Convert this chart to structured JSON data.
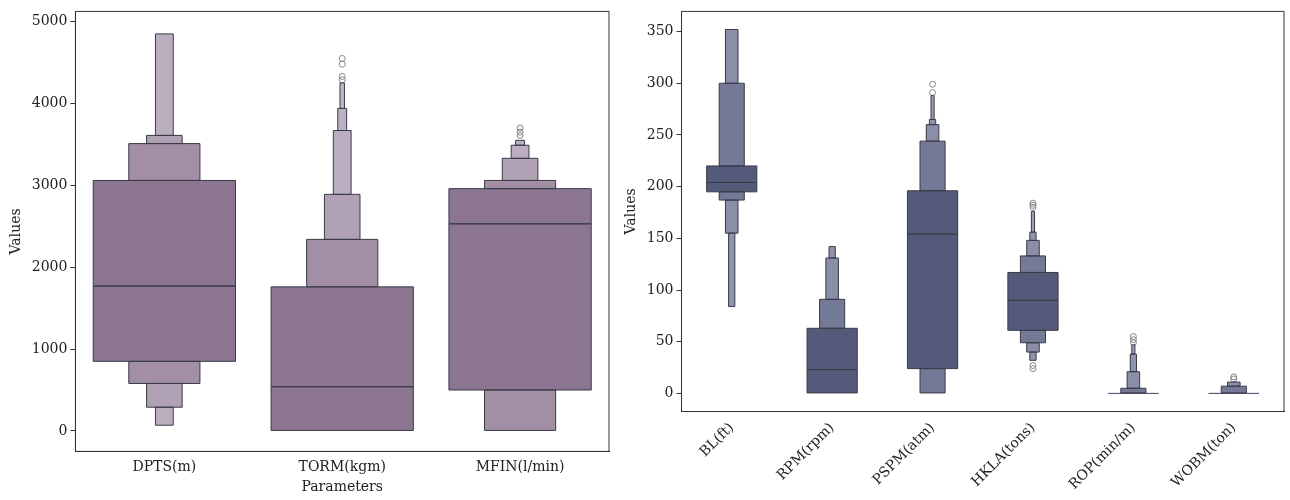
{
  "chart_data": [
    {
      "type": "bar",
      "xlabel": "Parameters",
      "ylabel": "Values",
      "categories": [
        "DPTS(m)",
        "TORM(kgm)",
        "MFIN(l/min)"
      ],
      "ylim": [
        -250,
        5125
      ],
      "yticks": [
        0,
        1000,
        2000,
        3000,
        4000,
        5000
      ],
      "grid": false,
      "legend": false,
      "series": [
        {
          "color": "#8b7590",
          "base": [
            1770,
            540,
            2530
          ],
          "values": [
            1290,
            1220,
            430
          ]
        },
        {
          "color": "#8b7590",
          "base": [
            850,
            0,
            500
          ],
          "values": [
            920,
            540,
            2030
          ]
        },
        {
          "color": "#a28fa5",
          "base": [
            3060,
            1760,
            2960
          ],
          "values": [
            450,
            580,
            100
          ]
        },
        {
          "color": "#a28fa5",
          "base": [
            580,
            null,
            0
          ],
          "values": [
            270,
            null,
            500
          ]
        },
        {
          "color": "#b0a1b4",
          "base": [
            3510,
            2340,
            3060
          ],
          "values": [
            100,
            550,
            270
          ]
        },
        {
          "color": "#b0a1b4",
          "base": [
            290,
            null,
            null
          ],
          "values": [
            290,
            null,
            null
          ]
        },
        {
          "color": "#bbaec0",
          "base": [
            3610,
            2890,
            3330
          ],
          "values": [
            1240,
            780,
            160
          ]
        },
        {
          "color": "#bbaec0",
          "base": [
            70,
            null,
            null
          ],
          "values": [
            220,
            null,
            null
          ]
        },
        {
          "color": "#bdb0c2",
          "base": [
            null,
            3670,
            3490
          ],
          "values": [
            null,
            270,
            60
          ]
        },
        {
          "color": "#bdb0c2",
          "base": [
            null,
            null,
            null
          ],
          "values": [
            null,
            null,
            null
          ]
        },
        {
          "color": "#c2b6c6",
          "base": [
            null,
            3940,
            null
          ],
          "values": [
            null,
            310,
            null
          ]
        },
        {
          "color": "#c2b6c6",
          "base": [
            null,
            null,
            null
          ],
          "values": [
            null,
            null,
            null
          ]
        },
        {
          "type": "scatter",
          "marker": "circle",
          "color": "#888888",
          "x": [
            "TORM(kgm)",
            "TORM(kgm)",
            "TORM(kgm)",
            "TORM(kgm)",
            "MFIN(l/min)",
            "MFIN(l/min)",
            "MFIN(l/min)"
          ],
          "values": [
            4290,
            4330,
            4480,
            4550,
            3610,
            3650,
            3700
          ]
        }
      ]
    },
    {
      "type": "bar",
      "ylabel": "Values",
      "categories": [
        "BL(ft)",
        "RPM(rpm)",
        "PSPM(atm)",
        "HKLA(tons)",
        "ROP(min/m)",
        "WOBM(ton)"
      ],
      "ylim": [
        -17.5,
        369.5
      ],
      "yticks": [
        0,
        50,
        100,
        150,
        200,
        250,
        300,
        350
      ],
      "grid": false,
      "legend": false,
      "series": [
        {
          "color": "#545a7a",
          "base": [
            204,
            23,
            154,
            90,
            0,
            0
          ],
          "values": [
            16,
            40,
            42,
            27,
            0,
            0
          ]
        },
        {
          "color": "#545a7a",
          "base": [
            195,
            0,
            24,
            61,
            null,
            null
          ],
          "values": [
            9,
            23,
            130,
            29,
            null,
            null
          ]
        },
        {
          "color": "#747a96",
          "base": [
            220,
            63,
            196,
            117,
            0,
            0
          ],
          "values": [
            80,
            28,
            48,
            16,
            5,
            7
          ]
        },
        {
          "color": "#747a96",
          "base": [
            187,
            null,
            0,
            49,
            null,
            null
          ],
          "values": [
            8,
            null,
            24,
            12,
            null,
            null
          ]
        },
        {
          "color": "#8a8fa7",
          "base": [
            300,
            91,
            244,
            133,
            5,
            7
          ],
          "values": [
            52,
            40,
            16,
            15,
            16,
            4
          ]
        },
        {
          "color": "#8a8fa7",
          "base": [
            155,
            null,
            null,
            40,
            null,
            null
          ],
          "values": [
            32,
            null,
            null,
            9,
            null,
            null
          ]
        },
        {
          "color": "#9095ab",
          "base": [
            null,
            131,
            260,
            148,
            21,
            null
          ],
          "values": [
            null,
            11,
            5,
            8,
            17,
            null
          ]
        },
        {
          "color": "#9095ab",
          "base": [
            84,
            null,
            null,
            32,
            null,
            null
          ],
          "values": [
            71,
            null,
            null,
            8,
            null,
            null
          ]
        },
        {
          "color": "#9aa0b5",
          "base": [
            null,
            null,
            265,
            156,
            38,
            null
          ],
          "values": [
            null,
            null,
            23,
            20,
            9,
            null
          ]
        },
        {
          "color": "#9aa0b5",
          "base": [
            null,
            null,
            null,
            null,
            null,
            null
          ],
          "values": [
            null,
            null,
            null,
            null,
            null,
            null
          ]
        },
        {
          "type": "scatter",
          "marker": "circle",
          "color": "#888888",
          "x": [
            "PSPM(atm)",
            "PSPM(atm)",
            "HKLA(tons)",
            "HKLA(tons)",
            "HKLA(tons)",
            "HKLA(tons)",
            "HKLA(tons)",
            "ROP(min/m)",
            "ROP(min/m)",
            "ROP(min/m)",
            "WOBM(ton)",
            "WOBM(ton)"
          ],
          "values": [
            291,
            299,
            180,
            182,
            184,
            24,
            27,
            49,
            52,
            55,
            14,
            16
          ]
        }
      ]
    }
  ]
}
